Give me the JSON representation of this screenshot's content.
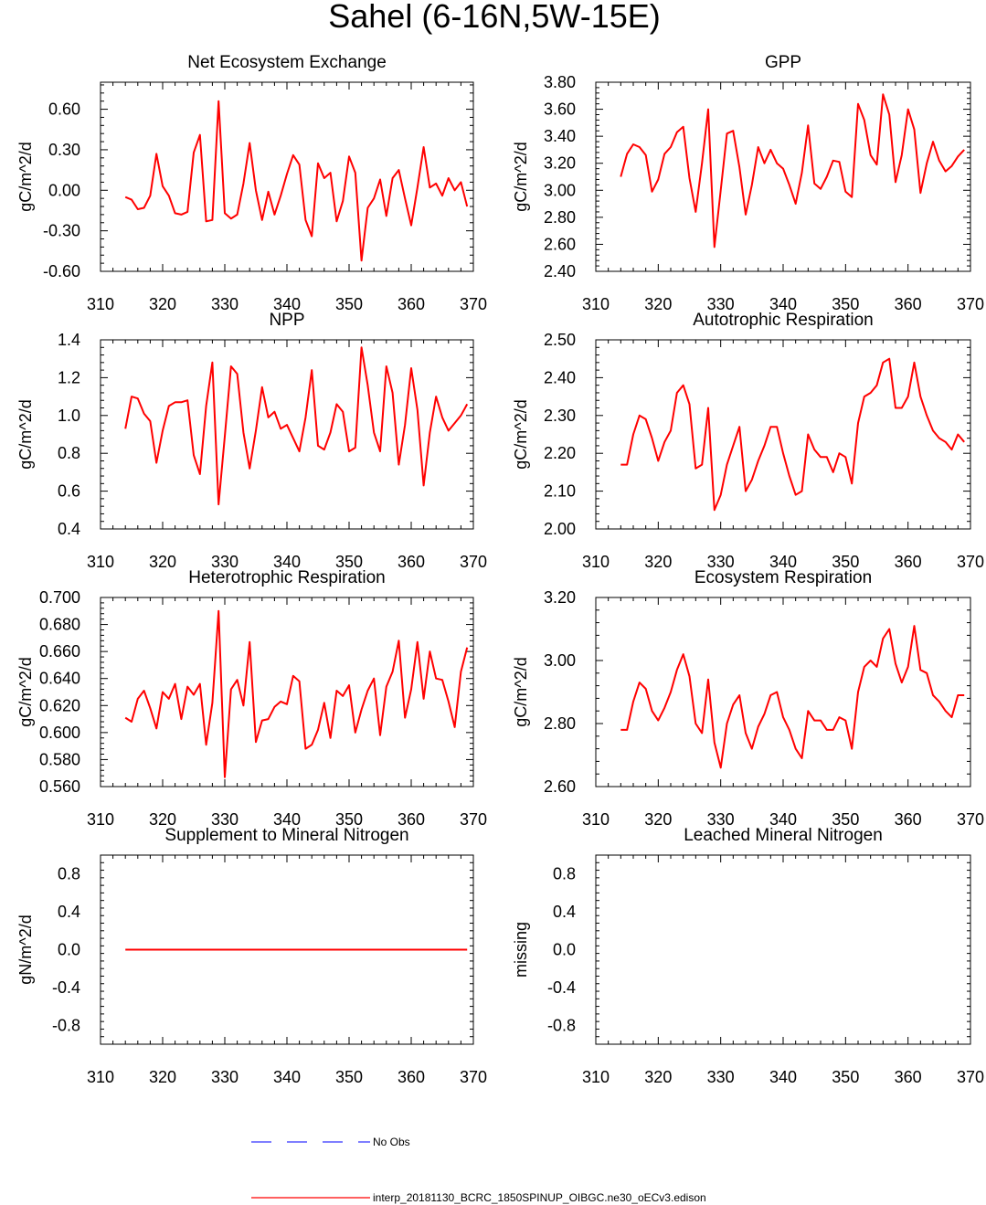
{
  "title": "Sahel (6-16N,5W-15E)",
  "colors": {
    "series": "#ff0000",
    "obs": "#3333ff",
    "axis": "#000000"
  },
  "legend": {
    "obs_label": "No Obs",
    "model_label": "interp_20181130_BCRC_1850SPINUP_OIBGC.ne30_oECv3.edison"
  },
  "chart_data": [
    {
      "type": "line",
      "title": "Net Ecosystem Exchange",
      "ylabel": "gC/m^2/d",
      "xlim": [
        310,
        370
      ],
      "ylim": [
        -0.6,
        0.8
      ],
      "xticks": [
        "310",
        "320",
        "330",
        "340",
        "350",
        "360",
        "370"
      ],
      "yticks": [
        "-0.60",
        "-0.30",
        "0.00",
        "0.30",
        "0.60"
      ],
      "ytick_values": [
        -0.6,
        -0.3,
        0.0,
        0.3,
        0.6
      ],
      "x": [
        314,
        315,
        316,
        317,
        318,
        319,
        320,
        321,
        322,
        323,
        324,
        325,
        326,
        327,
        328,
        329,
        330,
        331,
        332,
        333,
        334,
        335,
        336,
        337,
        338,
        339,
        340,
        341,
        342,
        343,
        344,
        345,
        346,
        347,
        348,
        349,
        350,
        351,
        352,
        353,
        354,
        355,
        356,
        357,
        358,
        359,
        360,
        361,
        362,
        363,
        364,
        365,
        366,
        367,
        368,
        369
      ],
      "values": [
        -0.05,
        -0.07,
        -0.14,
        -0.13,
        -0.04,
        0.27,
        0.03,
        -0.04,
        -0.17,
        -0.18,
        -0.16,
        0.28,
        0.41,
        -0.23,
        -0.22,
        0.66,
        -0.17,
        -0.21,
        -0.18,
        0.05,
        0.35,
        0.0,
        -0.22,
        -0.01,
        -0.18,
        -0.04,
        0.12,
        0.26,
        0.19,
        -0.22,
        -0.34,
        0.2,
        0.09,
        0.13,
        -0.23,
        -0.08,
        0.25,
        0.13,
        -0.52,
        -0.13,
        -0.06,
        0.08,
        -0.19,
        0.09,
        0.15,
        -0.06,
        -0.26,
        0.02,
        0.32,
        0.02,
        0.05,
        -0.04,
        0.09,
        0.0,
        0.06,
        -0.12
      ]
    },
    {
      "type": "line",
      "title": "GPP",
      "ylabel": "gC/m^2/d",
      "xlim": [
        310,
        370
      ],
      "ylim": [
        2.4,
        3.8
      ],
      "xticks": [
        "310",
        "320",
        "330",
        "340",
        "350",
        "360",
        "370"
      ],
      "yticks": [
        "2.40",
        "2.60",
        "2.80",
        "3.00",
        "3.20",
        "3.40",
        "3.60",
        "3.80"
      ],
      "ytick_values": [
        2.4,
        2.6,
        2.8,
        3.0,
        3.2,
        3.4,
        3.6,
        3.8
      ],
      "x": [
        314,
        315,
        316,
        317,
        318,
        319,
        320,
        321,
        322,
        323,
        324,
        325,
        326,
        327,
        328,
        329,
        330,
        331,
        332,
        333,
        334,
        335,
        336,
        337,
        338,
        339,
        340,
        341,
        342,
        343,
        344,
        345,
        346,
        347,
        348,
        349,
        350,
        351,
        352,
        353,
        354,
        355,
        356,
        357,
        358,
        359,
        360,
        361,
        362,
        363,
        364,
        365,
        366,
        367,
        368,
        369
      ],
      "values": [
        3.1,
        3.27,
        3.34,
        3.32,
        3.26,
        2.99,
        3.08,
        3.27,
        3.32,
        3.43,
        3.47,
        3.09,
        2.84,
        3.2,
        3.6,
        2.58,
        3.0,
        3.42,
        3.44,
        3.17,
        2.82,
        3.04,
        3.32,
        3.2,
        3.3,
        3.2,
        3.16,
        3.04,
        2.9,
        3.13,
        3.48,
        3.05,
        3.01,
        3.1,
        3.22,
        3.21,
        2.99,
        2.95,
        3.64,
        3.52,
        3.26,
        3.19,
        3.71,
        3.56,
        3.06,
        3.26,
        3.6,
        3.45,
        2.98,
        3.2,
        3.36,
        3.22,
        3.14,
        3.18,
        3.25,
        3.3
      ]
    },
    {
      "type": "line",
      "title": "NPP",
      "ylabel": "gC/m^2/d",
      "xlim": [
        310,
        370
      ],
      "ylim": [
        0.4,
        1.4
      ],
      "xticks": [
        "310",
        "320",
        "330",
        "340",
        "350",
        "360",
        "370"
      ],
      "yticks": [
        "0.4",
        "0.6",
        "0.8",
        "1.0",
        "1.2",
        "1.4"
      ],
      "ytick_values": [
        0.4,
        0.6,
        0.8,
        1.0,
        1.2,
        1.4
      ],
      "x": [
        314,
        315,
        316,
        317,
        318,
        319,
        320,
        321,
        322,
        323,
        324,
        325,
        326,
        327,
        328,
        329,
        330,
        331,
        332,
        333,
        334,
        335,
        336,
        337,
        338,
        339,
        340,
        341,
        342,
        343,
        344,
        345,
        346,
        347,
        348,
        349,
        350,
        351,
        352,
        353,
        354,
        355,
        356,
        357,
        358,
        359,
        360,
        361,
        362,
        363,
        364,
        365,
        366,
        367,
        368,
        369
      ],
      "values": [
        0.93,
        1.1,
        1.09,
        1.01,
        0.97,
        0.75,
        0.92,
        1.05,
        1.07,
        1.07,
        1.08,
        0.79,
        0.69,
        1.05,
        1.28,
        0.53,
        0.89,
        1.26,
        1.22,
        0.91,
        0.72,
        0.92,
        1.15,
        0.99,
        1.02,
        0.93,
        0.95,
        0.88,
        0.81,
        0.99,
        1.24,
        0.84,
        0.82,
        0.91,
        1.06,
        1.02,
        0.81,
        0.83,
        1.36,
        1.16,
        0.91,
        0.81,
        1.26,
        1.12,
        0.74,
        0.95,
        1.25,
        1.03,
        0.63,
        0.91,
        1.1,
        0.99,
        0.92,
        0.96,
        1.0,
        1.06
      ]
    },
    {
      "type": "line",
      "title": "Autotrophic Respiration",
      "ylabel": "gC/m^2/d",
      "xlim": [
        310,
        370
      ],
      "ylim": [
        2.0,
        2.5
      ],
      "xticks": [
        "310",
        "320",
        "330",
        "340",
        "350",
        "360",
        "370"
      ],
      "yticks": [
        "2.00",
        "2.10",
        "2.20",
        "2.30",
        "2.40",
        "2.50"
      ],
      "ytick_values": [
        2.0,
        2.1,
        2.2,
        2.3,
        2.4,
        2.5
      ],
      "x": [
        314,
        315,
        316,
        317,
        318,
        319,
        320,
        321,
        322,
        323,
        324,
        325,
        326,
        327,
        328,
        329,
        330,
        331,
        332,
        333,
        334,
        335,
        336,
        337,
        338,
        339,
        340,
        341,
        342,
        343,
        344,
        345,
        346,
        347,
        348,
        349,
        350,
        351,
        352,
        353,
        354,
        355,
        356,
        357,
        358,
        359,
        360,
        361,
        362,
        363,
        364,
        365,
        366,
        367,
        368,
        369
      ],
      "values": [
        2.17,
        2.17,
        2.25,
        2.3,
        2.29,
        2.24,
        2.18,
        2.23,
        2.26,
        2.36,
        2.38,
        2.33,
        2.16,
        2.17,
        2.32,
        2.05,
        2.09,
        2.17,
        2.22,
        2.27,
        2.1,
        2.13,
        2.18,
        2.22,
        2.27,
        2.27,
        2.2,
        2.14,
        2.09,
        2.1,
        2.25,
        2.21,
        2.19,
        2.19,
        2.15,
        2.2,
        2.19,
        2.12,
        2.28,
        2.35,
        2.36,
        2.38,
        2.44,
        2.45,
        2.32,
        2.32,
        2.35,
        2.44,
        2.35,
        2.3,
        2.26,
        2.24,
        2.23,
        2.21,
        2.25,
        2.23
      ]
    },
    {
      "type": "line",
      "title": "Heterotrophic Respiration",
      "ylabel": "gC/m^2/d",
      "xlim": [
        310,
        370
      ],
      "ylim": [
        0.56,
        0.7
      ],
      "xticks": [
        "310",
        "320",
        "330",
        "340",
        "350",
        "360",
        "370"
      ],
      "yticks": [
        "0.560",
        "0.580",
        "0.600",
        "0.620",
        "0.640",
        "0.660",
        "0.680",
        "0.700"
      ],
      "ytick_values": [
        0.56,
        0.58,
        0.6,
        0.62,
        0.64,
        0.66,
        0.68,
        0.7
      ],
      "x": [
        314,
        315,
        316,
        317,
        318,
        319,
        320,
        321,
        322,
        323,
        324,
        325,
        326,
        327,
        328,
        329,
        330,
        331,
        332,
        333,
        334,
        335,
        336,
        337,
        338,
        339,
        340,
        341,
        342,
        343,
        344,
        345,
        346,
        347,
        348,
        349,
        350,
        351,
        352,
        353,
        354,
        355,
        356,
        357,
        358,
        359,
        360,
        361,
        362,
        363,
        364,
        365,
        366,
        367,
        368,
        369
      ],
      "values": [
        0.611,
        0.608,
        0.625,
        0.631,
        0.618,
        0.603,
        0.63,
        0.625,
        0.636,
        0.61,
        0.634,
        0.628,
        0.636,
        0.591,
        0.622,
        0.69,
        0.567,
        0.632,
        0.639,
        0.62,
        0.667,
        0.593,
        0.609,
        0.61,
        0.619,
        0.623,
        0.621,
        0.642,
        0.638,
        0.588,
        0.591,
        0.602,
        0.622,
        0.596,
        0.631,
        0.627,
        0.635,
        0.6,
        0.617,
        0.631,
        0.64,
        0.598,
        0.634,
        0.645,
        0.668,
        0.611,
        0.632,
        0.667,
        0.625,
        0.66,
        0.64,
        0.639,
        0.623,
        0.604,
        0.645,
        0.663
      ]
    },
    {
      "type": "line",
      "title": "Ecosystem Respiration",
      "ylabel": "gC/m^2/d",
      "xlim": [
        310,
        370
      ],
      "ylim": [
        2.6,
        3.2
      ],
      "xticks": [
        "310",
        "320",
        "330",
        "340",
        "350",
        "360",
        "370"
      ],
      "yticks": [
        "2.60",
        "2.80",
        "3.00",
        "3.20"
      ],
      "ytick_values": [
        2.6,
        2.8,
        3.0,
        3.2
      ],
      "x": [
        314,
        315,
        316,
        317,
        318,
        319,
        320,
        321,
        322,
        323,
        324,
        325,
        326,
        327,
        328,
        329,
        330,
        331,
        332,
        333,
        334,
        335,
        336,
        337,
        338,
        339,
        340,
        341,
        342,
        343,
        344,
        345,
        346,
        347,
        348,
        349,
        350,
        351,
        352,
        353,
        354,
        355,
        356,
        357,
        358,
        359,
        360,
        361,
        362,
        363,
        364,
        365,
        366,
        367,
        368,
        369
      ],
      "values": [
        2.78,
        2.78,
        2.87,
        2.93,
        2.91,
        2.84,
        2.81,
        2.85,
        2.9,
        2.97,
        3.02,
        2.95,
        2.8,
        2.77,
        2.94,
        2.74,
        2.66,
        2.8,
        2.86,
        2.89,
        2.77,
        2.72,
        2.79,
        2.83,
        2.89,
        2.9,
        2.82,
        2.78,
        2.72,
        2.69,
        2.84,
        2.81,
        2.81,
        2.78,
        2.78,
        2.82,
        2.81,
        2.72,
        2.9,
        2.98,
        3.0,
        2.98,
        3.07,
        3.1,
        2.99,
        2.93,
        2.98,
        3.11,
        2.97,
        2.96,
        2.89,
        2.87,
        2.84,
        2.82,
        2.89,
        2.89
      ]
    },
    {
      "type": "line",
      "title": "Supplement to Mineral Nitrogen",
      "ylabel": "gN/m^2/d",
      "xlim": [
        310,
        370
      ],
      "ylim": [
        -1.0,
        1.0
      ],
      "xticks": [
        "310",
        "320",
        "330",
        "340",
        "350",
        "360",
        "370"
      ],
      "yticks": [
        "-0.8",
        "-0.4",
        "0.0",
        "0.4",
        "0.8"
      ],
      "ytick_values": [
        -0.8,
        -0.4,
        0.0,
        0.4,
        0.8
      ],
      "x": [
        314,
        369
      ],
      "values": [
        0.0,
        0.0
      ]
    },
    {
      "type": "line",
      "title": "Leached Mineral Nitrogen",
      "ylabel": "missing",
      "xlim": [
        310,
        370
      ],
      "ylim": [
        -1.0,
        1.0
      ],
      "xticks": [
        "310",
        "320",
        "330",
        "340",
        "350",
        "360",
        "370"
      ],
      "yticks": [
        "-0.8",
        "-0.4",
        "0.0",
        "0.4",
        "0.8"
      ],
      "ytick_values": [
        -0.8,
        -0.4,
        0.0,
        0.4,
        0.8
      ],
      "x": [],
      "values": []
    }
  ]
}
